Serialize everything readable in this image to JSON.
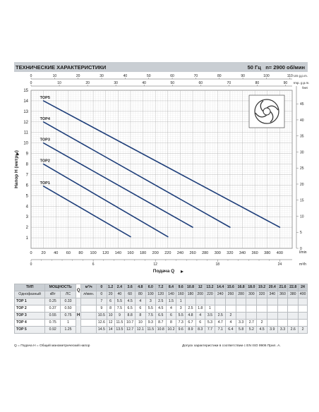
{
  "header": {
    "title": "ТЕХНИЧЕСКИЕ ХАРАКТЕРИСТИКИ",
    "freq": "50 Гц",
    "speed": "n= 2900 об/мин"
  },
  "chart_data": {
    "type": "line",
    "xlabel": "Подача Q",
    "ylabel": "Напор H (метры)",
    "x_unit": "l/min",
    "x_unit2": "m³/h",
    "top_unit1": "US g.p.m.",
    "top_unit2": "Imp. g.p.m.",
    "right_unit": "feet",
    "xlim": [
      0,
      420
    ],
    "ylim": [
      0,
      15
    ],
    "x_ticks": [
      "0",
      "20",
      "40",
      "60",
      "80",
      "100",
      "120",
      "140",
      "160",
      "180",
      "200",
      "220",
      "240",
      "260",
      "280",
      "300",
      "320",
      "340",
      "360",
      "380",
      "400"
    ],
    "y_ticks": [
      "1",
      "2",
      "3",
      "4",
      "5",
      "6",
      "7",
      "8",
      "9",
      "10",
      "11",
      "12",
      "13",
      "14",
      "15"
    ],
    "m3h_ticks": [
      "0",
      "6",
      "12",
      "18",
      "24"
    ],
    "usgpm_ticks": [
      "0",
      "10",
      "20",
      "30",
      "40",
      "50",
      "60",
      "70",
      "80",
      "90",
      "100",
      "110"
    ],
    "impgpm_ticks": [
      "0",
      "10",
      "20",
      "30",
      "40",
      "50",
      "60",
      "70",
      "80",
      "90"
    ],
    "feet_ticks": [
      "0",
      "5",
      "10",
      "15",
      "20",
      "25",
      "30",
      "35",
      "40",
      "45"
    ],
    "grid": true,
    "series": [
      {
        "name": "TOP1",
        "x": [
          20,
          160
        ],
        "y": [
          5.9,
          1.1
        ]
      },
      {
        "name": "TOP2",
        "x": [
          20,
          220
        ],
        "y": [
          8,
          1.1
        ]
      },
      {
        "name": "TOP3",
        "x": [
          20,
          260
        ],
        "y": [
          10,
          2.0
        ]
      },
      {
        "name": "TOP4",
        "x": [
          20,
          320
        ],
        "y": [
          12,
          2.0
        ]
      },
      {
        "name": "TOP5",
        "x": [
          20,
          400
        ],
        "y": [
          14,
          2.0
        ]
      }
    ]
  },
  "table": {
    "h_type": "ТИП",
    "h_power": "МОЩНОСТЬ",
    "h_single": "Однофазный",
    "h_kw": "кВт",
    "h_hp": "ЛС",
    "q_label": "Q",
    "h_label": "H",
    "unit_m3h": "м³/ч",
    "unit_lmin": "л/мин.",
    "m3h": [
      "0",
      "1.2",
      "2.4",
      "3.6",
      "4.8",
      "6.0",
      "7.2",
      "8.4",
      "9.6",
      "10.8",
      "12",
      "13.2",
      "14.4",
      "15.6",
      "16.8",
      "18.0",
      "19.2",
      "20.4",
      "21.6",
      "22.8",
      "24"
    ],
    "lmin": [
      "0",
      "20",
      "40",
      "60",
      "80",
      "100",
      "120",
      "140",
      "160",
      "180",
      "200",
      "220",
      "240",
      "260",
      "280",
      "300",
      "320",
      "340",
      "360",
      "380",
      "400"
    ],
    "rows": [
      {
        "model": "TOP 1",
        "kw": "0.25",
        "hp": "0.33",
        "h": [
          "7",
          "6",
          "5.5",
          "4.5",
          "4",
          "3",
          "2.5",
          "1.5",
          "1",
          "",
          "",
          "",
          "",
          "",
          "",
          "",
          "",
          "",
          "",
          "",
          ""
        ]
      },
      {
        "model": "TOP 2",
        "kw": "0.37",
        "hp": "0.50",
        "h": [
          "9",
          "8",
          "7.5",
          "6.5",
          "6",
          "5.5",
          "4.5",
          "4",
          "3",
          "2.5",
          "1.8",
          "1",
          "",
          "",
          "",
          "",
          "",
          "",
          "",
          "",
          ""
        ]
      },
      {
        "model": "TOP 3",
        "kw": "0.55",
        "hp": "0.75",
        "h": [
          "10.5",
          "10",
          "9",
          "8.8",
          "8",
          "7.5",
          "6.5",
          "6",
          "5.5",
          "4.8",
          "4",
          "3.5",
          "2.5",
          "2",
          "",
          "",
          "",
          "",
          "",
          "",
          ""
        ]
      },
      {
        "model": "TOP 4",
        "kw": "0.75",
        "hp": "1",
        "h": [
          "12.6",
          "12",
          "11.5",
          "10.7",
          "10",
          "9.3",
          "8.7",
          "8",
          "7.3",
          "6.7",
          "6",
          "5.3",
          "4.7",
          "4",
          "3.3",
          "2.7",
          "2",
          "",
          "",
          "",
          ""
        ]
      },
      {
        "model": "TOP 5",
        "kw": "0.92",
        "hp": "1.25",
        "h": [
          "14.5",
          "14",
          "13.5",
          "12.7",
          "12.1",
          "11.5",
          "10.8",
          "10.2",
          "9.6",
          "8.9",
          "8.3",
          "7.7",
          "7.1",
          "6.4",
          "5.8",
          "5.2",
          "4.5",
          "3.9",
          "3.3",
          "2.6",
          "2"
        ]
      }
    ]
  },
  "footer": {
    "legend": "Q = Подача   H = Общий манометрический напор",
    "note": "Допуск характеристики в соответствии с EN ISO 9906 Прил. А."
  }
}
